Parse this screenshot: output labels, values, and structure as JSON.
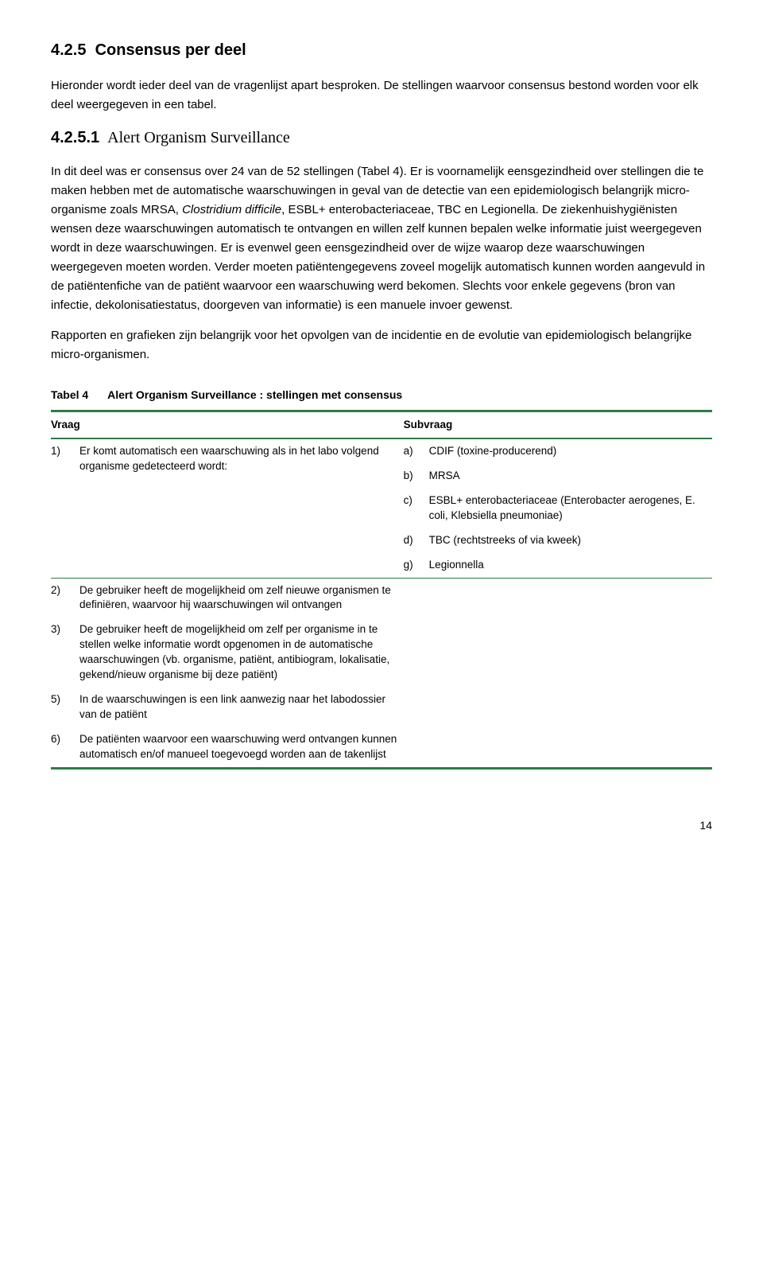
{
  "colors": {
    "table_border": "#2e7d47",
    "text": "#000000",
    "background": "#ffffff"
  },
  "section": {
    "number": "4.2.5",
    "title": "Consensus per deel",
    "intro": "Hieronder wordt ieder deel van de vragenlijst apart besproken. De stellingen waarvoor consensus bestond worden voor elk deel weergegeven in een tabel."
  },
  "subsection": {
    "number": "4.2.5.1",
    "title": "Alert Organism Surveillance",
    "para1_a": "In dit deel was er consensus over 24 van de 52 stellingen (Tabel 4). Er is voornamelijk eensgezindheid over stellingen die te maken hebben met de automatische waarschuwingen in geval van de detectie van een epidemiologisch belangrijk micro-organisme zoals MRSA, ",
    "para1_italic": "Clostridium difficile",
    "para1_b": ", ESBL+ enterobacteriaceae, TBC en Legionella. De ziekenhuishygiënisten wensen deze waarschuwingen automatisch te ontvangen en willen zelf kunnen bepalen welke informatie juist weergegeven wordt in deze waarschuwingen. Er is evenwel geen eensgezindheid over de wijze waarop deze waarschuwingen weergegeven moeten worden. Verder moeten patiëntengegevens zoveel mogelijk automatisch kunnen worden aangevuld in de patiëntenfiche van de patiënt waarvoor een waarschuwing werd bekomen. Slechts voor enkele gegevens (bron van infectie, dekolonisatiestatus, doorgeven van informatie) is een manuele invoer gewenst.",
    "para2": "Rapporten en grafieken zijn belangrijk voor het opvolgen van de incidentie en de evolutie van epidemiologisch belangrijke micro-organismen."
  },
  "table": {
    "caption_label": "Tabel 4",
    "caption_title": "Alert Organism Surveillance : stellingen met consensus",
    "header_vraag": "Vraag",
    "header_subvraag": "Subvraag",
    "q1_num": "1)",
    "q1_text": "Er komt automatisch een waarschuwing als in het labo volgend organisme gedetecteerd wordt:",
    "s_a_num": "a)",
    "s_a_text": "CDIF (toxine-producerend)",
    "s_b_num": "b)",
    "s_b_text": "MRSA",
    "s_c_num": "c)",
    "s_c_text": "ESBL+ enterobacteriaceae (Enterobacter aerogenes, E. coli, Klebsiella pneumoniae)",
    "s_d_num": "d)",
    "s_d_text": "TBC (rechtstreeks of via kweek)",
    "s_g_num": "g)",
    "s_g_text": "Legionnella",
    "q2_num": "2)",
    "q2_text": "De gebruiker heeft de mogelijkheid om zelf nieuwe organismen te definiëren, waarvoor hij waarschuwingen wil ontvangen",
    "q3_num": "3)",
    "q3_text": "De gebruiker heeft de mogelijkheid om zelf per organisme in te stellen welke informatie wordt opgenomen in de automatische waarschuwingen (vb. organisme, patiënt, antibiogram, lokalisatie, gekend/nieuw organisme bij deze patiënt)",
    "q5_num": "5)",
    "q5_text": "In de waarschuwingen is een link aanwezig naar het labodossier van de patiënt",
    "q6_num": "6)",
    "q6_text": "De patiënten waarvoor een waarschuwing werd ontvangen kunnen automatisch en/of manueel toegevoegd worden aan de takenlijst"
  },
  "page_number": "14"
}
